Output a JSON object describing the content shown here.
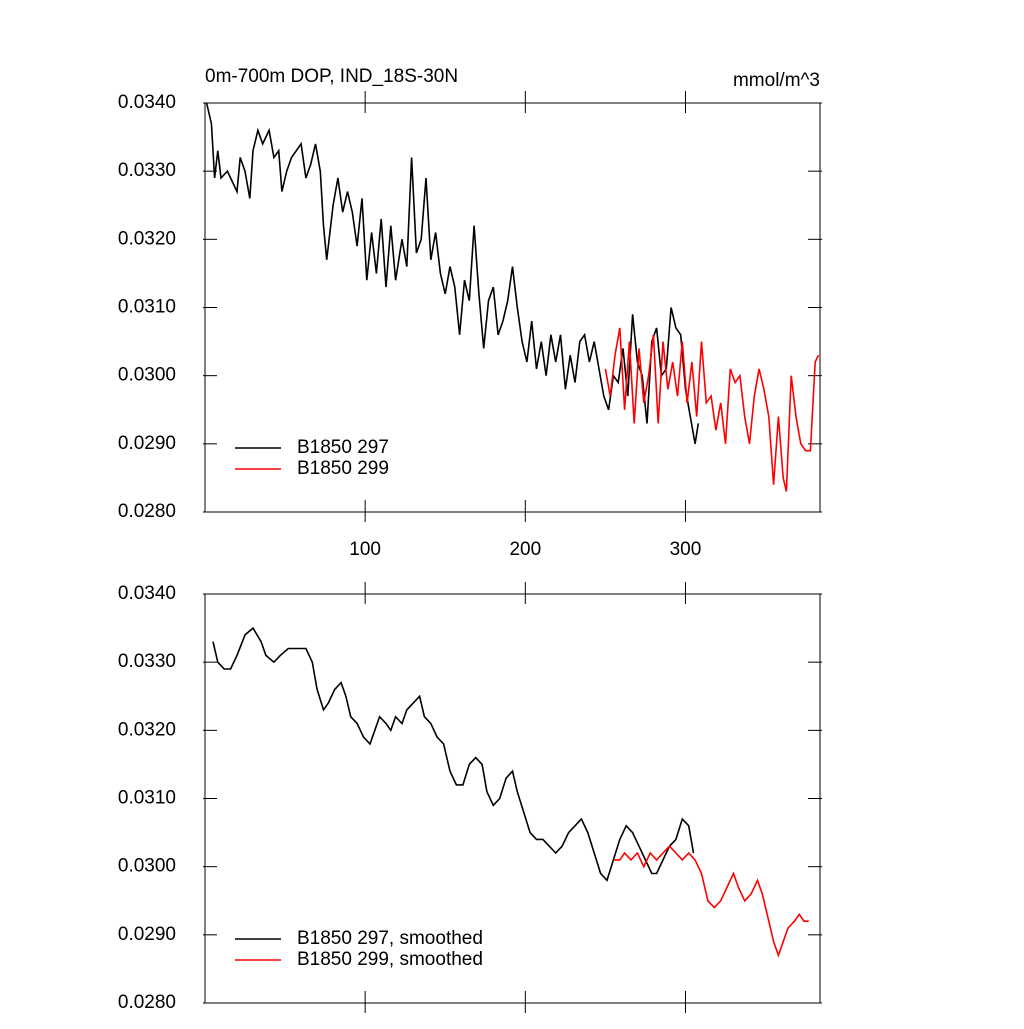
{
  "chart_data": [
    {
      "type": "line",
      "title": "0m-700m DOP, IND_18S-30N",
      "subtitle": "mmol/m^3",
      "xlim": [
        0,
        384
      ],
      "xticks": [
        100,
        200,
        300
      ],
      "ylim": [
        0.028,
        0.034
      ],
      "yticks": [
        {
          "value": 0.028,
          "label": "0.0280"
        },
        {
          "value": 0.029,
          "label": "0.0290"
        },
        {
          "value": 0.03,
          "label": "0.0300"
        },
        {
          "value": 0.031,
          "label": "0.0310"
        },
        {
          "value": 0.032,
          "label": "0.0320"
        },
        {
          "value": 0.033,
          "label": "0.0330"
        },
        {
          "value": 0.034,
          "label": "0.0340"
        }
      ],
      "legend": "lower left",
      "series": [
        {
          "name": "B1850 297",
          "color": "#000000",
          "x": [
            1,
            4,
            6,
            8,
            10,
            14,
            18,
            20,
            22,
            25,
            28,
            30,
            33,
            36,
            40,
            43,
            46,
            48,
            51,
            54,
            57,
            60,
            63,
            66,
            69,
            72,
            74,
            76,
            80,
            83,
            86,
            89,
            92,
            95,
            98,
            101,
            104,
            107,
            110,
            113,
            116,
            119,
            123,
            126,
            129,
            132,
            135,
            138,
            141,
            144,
            147,
            150,
            153,
            156,
            159,
            162,
            165,
            168,
            171,
            174,
            177,
            180,
            183,
            186,
            189,
            192,
            195,
            198,
            201,
            204,
            207,
            210,
            213,
            216,
            219,
            222,
            225,
            228,
            231,
            234,
            237,
            240,
            243,
            246,
            249,
            252,
            255,
            258,
            261,
            264,
            267,
            270,
            273,
            276,
            279,
            282,
            285,
            288,
            291,
            294,
            297,
            300,
            303,
            306,
            308
          ],
          "values": [
            0.034,
            0.0337,
            0.0329,
            0.0333,
            0.0329,
            0.033,
            0.0328,
            0.0327,
            0.0332,
            0.033,
            0.0326,
            0.0333,
            0.0336,
            0.0334,
            0.0336,
            0.0332,
            0.0333,
            0.0327,
            0.033,
            0.0332,
            0.0333,
            0.0334,
            0.0329,
            0.0331,
            0.0334,
            0.033,
            0.0322,
            0.0317,
            0.0325,
            0.0329,
            0.0324,
            0.0327,
            0.0324,
            0.0319,
            0.0326,
            0.0314,
            0.0321,
            0.0315,
            0.0323,
            0.0313,
            0.0322,
            0.0314,
            0.032,
            0.0316,
            0.0332,
            0.0318,
            0.032,
            0.0329,
            0.0317,
            0.0321,
            0.0315,
            0.0312,
            0.0316,
            0.0313,
            0.0306,
            0.0314,
            0.0311,
            0.0322,
            0.0312,
            0.0304,
            0.0311,
            0.0313,
            0.0306,
            0.0308,
            0.0311,
            0.0316,
            0.031,
            0.0305,
            0.0302,
            0.0308,
            0.0301,
            0.0305,
            0.03,
            0.0306,
            0.0302,
            0.0306,
            0.0298,
            0.0303,
            0.0299,
            0.0305,
            0.0306,
            0.0302,
            0.0305,
            0.0301,
            0.0297,
            0.0295,
            0.03,
            0.0299,
            0.0304,
            0.0297,
            0.0309,
            0.0302,
            0.03,
            0.0293,
            0.0305,
            0.0307,
            0.03,
            0.0301,
            0.031,
            0.0307,
            0.0306,
            0.0298,
            0.0294,
            0.029,
            0.0293
          ]
        },
        {
          "name": "B1850 299",
          "color": "#ff0000",
          "x": [
            250,
            253,
            256,
            259,
            262,
            265,
            268,
            271,
            274,
            277,
            280,
            283,
            286,
            289,
            292,
            295,
            298,
            301,
            304,
            307,
            310,
            313,
            316,
            319,
            322,
            325,
            328,
            331,
            334,
            337,
            340,
            343,
            346,
            349,
            352,
            355,
            358,
            361,
            363,
            366,
            369,
            372,
            375,
            378,
            381,
            383
          ],
          "values": [
            0.0301,
            0.0297,
            0.0303,
            0.0307,
            0.0295,
            0.0305,
            0.0293,
            0.0304,
            0.0296,
            0.03,
            0.0306,
            0.0293,
            0.0305,
            0.0298,
            0.0302,
            0.0297,
            0.0305,
            0.0296,
            0.0302,
            0.0294,
            0.0305,
            0.0296,
            0.0297,
            0.0292,
            0.0296,
            0.029,
            0.0301,
            0.0299,
            0.03,
            0.0294,
            0.029,
            0.0297,
            0.0301,
            0.0298,
            0.0294,
            0.0284,
            0.0294,
            0.0285,
            0.0283,
            0.03,
            0.0294,
            0.029,
            0.0289,
            0.0289,
            0.0302,
            0.0303
          ]
        }
      ]
    },
    {
      "type": "line",
      "xlim": [
        0,
        384
      ],
      "xticks": [
        100,
        200,
        300
      ],
      "ylim": [
        0.028,
        0.034
      ],
      "yticks": [
        {
          "value": 0.028,
          "label": "0.0280"
        },
        {
          "value": 0.029,
          "label": "0.0290"
        },
        {
          "value": 0.03,
          "label": "0.0300"
        },
        {
          "value": 0.031,
          "label": "0.0310"
        },
        {
          "value": 0.032,
          "label": "0.0320"
        },
        {
          "value": 0.033,
          "label": "0.0330"
        },
        {
          "value": 0.034,
          "label": "0.0340"
        }
      ],
      "legend": "lower left",
      "series": [
        {
          "name": "B1850 297, smoothed",
          "color": "#000000",
          "x": [
            5,
            8,
            12,
            16,
            20,
            25,
            30,
            35,
            38,
            43,
            47,
            52,
            57,
            63,
            67,
            70,
            74,
            77,
            81,
            85,
            88,
            91,
            95,
            99,
            103,
            106,
            109,
            113,
            116,
            119,
            123,
            126,
            130,
            134,
            137,
            141,
            145,
            149,
            153,
            157,
            161,
            165,
            169,
            173,
            176,
            180,
            184,
            188,
            192,
            195,
            199,
            203,
            207,
            211,
            215,
            219,
            223,
            227,
            231,
            235,
            239,
            243,
            247,
            251,
            255,
            259,
            263,
            267,
            271,
            275,
            279,
            282,
            286,
            290,
            294,
            298,
            302,
            305
          ],
          "values": [
            0.0333,
            0.033,
            0.0329,
            0.0329,
            0.0331,
            0.0334,
            0.0335,
            0.0333,
            0.0331,
            0.033,
            0.0331,
            0.0332,
            0.0332,
            0.0332,
            0.033,
            0.0326,
            0.0323,
            0.0324,
            0.0326,
            0.0327,
            0.0325,
            0.0322,
            0.0321,
            0.0319,
            0.0318,
            0.032,
            0.0322,
            0.0321,
            0.032,
            0.0322,
            0.0321,
            0.0323,
            0.0324,
            0.0325,
            0.0322,
            0.0321,
            0.0319,
            0.0318,
            0.0314,
            0.0312,
            0.0312,
            0.0315,
            0.0316,
            0.0315,
            0.0311,
            0.0309,
            0.031,
            0.0313,
            0.0314,
            0.0311,
            0.0308,
            0.0305,
            0.0304,
            0.0304,
            0.0303,
            0.0302,
            0.0303,
            0.0305,
            0.0306,
            0.0307,
            0.0305,
            0.0302,
            0.0299,
            0.0298,
            0.0301,
            0.0304,
            0.0306,
            0.0305,
            0.0303,
            0.0301,
            0.0299,
            0.0299,
            0.0301,
            0.0303,
            0.0304,
            0.0307,
            0.0306,
            0.0302
          ]
        },
        {
          "name": "B1850 299, smoothed",
          "color": "#ff0000",
          "x": [
            255,
            259,
            262,
            266,
            270,
            274,
            278,
            282,
            286,
            290,
            294,
            298,
            302,
            306,
            310,
            314,
            318,
            322,
            326,
            330,
            333,
            337,
            341,
            345,
            348,
            352,
            355,
            358,
            361,
            364,
            368,
            371,
            374,
            377
          ],
          "values": [
            0.0301,
            0.0301,
            0.0302,
            0.0301,
            0.0302,
            0.03,
            0.0302,
            0.0301,
            0.0302,
            0.0303,
            0.0302,
            0.0301,
            0.0302,
            0.0301,
            0.0299,
            0.0295,
            0.0294,
            0.0295,
            0.0297,
            0.0299,
            0.0297,
            0.0295,
            0.0296,
            0.0298,
            0.0296,
            0.0292,
            0.0289,
            0.0287,
            0.0289,
            0.0291,
            0.0292,
            0.0293,
            0.0292,
            0.0292
          ]
        }
      ]
    }
  ]
}
